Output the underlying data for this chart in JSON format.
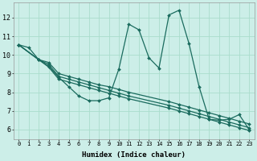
{
  "xlabel": "Humidex (Indice chaleur)",
  "background_color": "#cceee8",
  "grid_color": "#aaddcc",
  "line_color": "#1a6b5e",
  "xlim": [
    -0.5,
    23.5
  ],
  "ylim": [
    5.5,
    12.8
  ],
  "yticks": [
    6,
    7,
    8,
    9,
    10,
    11,
    12
  ],
  "xticks": [
    0,
    1,
    2,
    3,
    4,
    5,
    6,
    7,
    8,
    9,
    10,
    11,
    12,
    13,
    14,
    15,
    16,
    17,
    18,
    19,
    20,
    21,
    22,
    23
  ],
  "series": [
    {
      "x": [
        0,
        1,
        2,
        3,
        4,
        5,
        6,
        7,
        8,
        9,
        10,
        11,
        12,
        13,
        14,
        15,
        16,
        17,
        18,
        19,
        20,
        21,
        22,
        23
      ],
      "y": [
        10.55,
        10.4,
        9.75,
        9.4,
        8.8,
        8.3,
        7.8,
        7.55,
        7.55,
        7.7,
        9.25,
        11.65,
        11.35,
        9.85,
        9.3,
        12.15,
        12.4,
        10.6,
        8.3,
        6.55,
        6.5,
        6.55,
        6.8,
        6.0
      ]
    },
    {
      "x": [
        0,
        2,
        3,
        4,
        5,
        6,
        7,
        8,
        9,
        10,
        11,
        15,
        16,
        17,
        18,
        19,
        20,
        21,
        22,
        23
      ],
      "y": [
        10.55,
        9.75,
        9.35,
        8.7,
        8.55,
        8.4,
        8.25,
        8.1,
        7.95,
        7.8,
        7.65,
        7.15,
        7.0,
        6.85,
        6.7,
        6.55,
        6.4,
        6.25,
        6.1,
        5.95
      ]
    },
    {
      "x": [
        0,
        2,
        3,
        4,
        5,
        6,
        7,
        8,
        9,
        10,
        11,
        15,
        16,
        17,
        18,
        19,
        20,
        21,
        22,
        23
      ],
      "y": [
        10.55,
        9.75,
        9.5,
        8.85,
        8.7,
        8.55,
        8.4,
        8.25,
        8.1,
        7.95,
        7.8,
        7.3,
        7.15,
        7.0,
        6.85,
        6.7,
        6.55,
        6.4,
        6.25,
        6.1
      ]
    },
    {
      "x": [
        0,
        2,
        3,
        4,
        5,
        6,
        7,
        8,
        9,
        10,
        11,
        15,
        16,
        17,
        18,
        19,
        20,
        21,
        22,
        23
      ],
      "y": [
        10.55,
        9.75,
        9.6,
        9.0,
        8.85,
        8.7,
        8.55,
        8.4,
        8.3,
        8.15,
        8.0,
        7.5,
        7.35,
        7.2,
        7.05,
        6.9,
        6.75,
        6.6,
        6.45,
        6.3
      ]
    }
  ]
}
